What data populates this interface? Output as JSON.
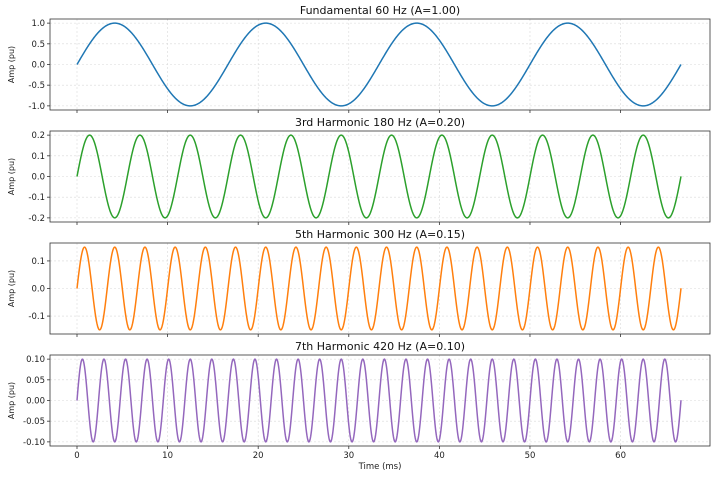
{
  "chart_data": [
    {
      "type": "line",
      "title": "Fundamental 60 Hz (A=1.00)",
      "ylabel": "Amp (pu)",
      "xlabel": "",
      "frequency_hz": 60,
      "amplitude": 1.0,
      "xlim": [
        0,
        66.67
      ],
      "ylim": [
        -1.1,
        1.1
      ],
      "yticks": [
        1.0,
        0.5,
        0.0,
        -0.5,
        -1.0
      ],
      "ytick_labels": [
        "1.0",
        "0.5",
        "0.0",
        "-0.5",
        "-1.0"
      ],
      "xticks": [
        0,
        10,
        20,
        30,
        40,
        50,
        60
      ],
      "xtick_labels": [],
      "series": [
        {
          "color": "#1f77b4"
        }
      ],
      "grid": true
    },
    {
      "type": "line",
      "title": "3rd Harmonic 180 Hz (A=0.20)",
      "ylabel": "Amp (pu)",
      "xlabel": "",
      "frequency_hz": 180,
      "amplitude": 0.2,
      "xlim": [
        0,
        66.67
      ],
      "ylim": [
        -0.22,
        0.22
      ],
      "yticks": [
        0.2,
        0.1,
        0.0,
        -0.1,
        -0.2
      ],
      "ytick_labels": [
        "0.2",
        "0.1",
        "0.0",
        "-0.1",
        "-0.2"
      ],
      "xticks": [
        0,
        10,
        20,
        30,
        40,
        50,
        60
      ],
      "xtick_labels": [],
      "series": [
        {
          "color": "#2ca02c"
        }
      ],
      "grid": true
    },
    {
      "type": "line",
      "title": "5th Harmonic 300 Hz (A=0.15)",
      "ylabel": "Amp (pu)",
      "xlabel": "",
      "frequency_hz": 300,
      "amplitude": 0.15,
      "xlim": [
        0,
        66.67
      ],
      "ylim": [
        -0.165,
        0.165
      ],
      "yticks": [
        0.1,
        0.0,
        -0.1
      ],
      "ytick_labels": [
        "0.1",
        "0.0",
        "-0.1"
      ],
      "xticks": [
        0,
        10,
        20,
        30,
        40,
        50,
        60
      ],
      "xtick_labels": [],
      "series": [
        {
          "color": "#ff7f0e"
        }
      ],
      "grid": true
    },
    {
      "type": "line",
      "title": "7th Harmonic 420 Hz (A=0.10)",
      "ylabel": "Amp (pu)",
      "xlabel": "Time (ms)",
      "frequency_hz": 420,
      "amplitude": 0.1,
      "xlim": [
        0,
        66.67
      ],
      "ylim": [
        -0.11,
        0.11
      ],
      "yticks": [
        0.1,
        0.05,
        0.0,
        -0.05,
        -0.1
      ],
      "ytick_labels": [
        "0.10",
        "0.05",
        "0.00",
        "-0.05",
        "-0.10"
      ],
      "xticks": [
        0,
        10,
        20,
        30,
        40,
        50,
        60
      ],
      "xtick_labels": [
        "0",
        "10",
        "20",
        "30",
        "40",
        "50",
        "60"
      ],
      "series": [
        {
          "color": "#9467bd"
        }
      ],
      "grid": true
    }
  ]
}
